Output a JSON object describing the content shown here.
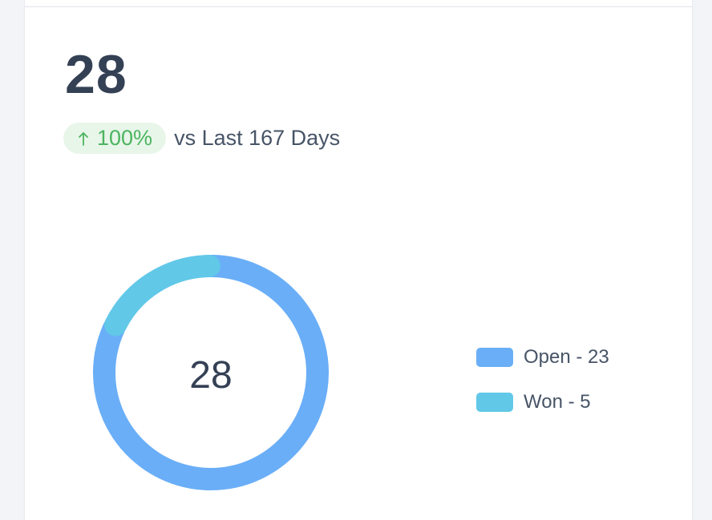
{
  "metric": {
    "value": "28",
    "trend_percent": "100%",
    "trend_direction": "up",
    "comparison_label": "vs Last 167 Days"
  },
  "chart_data": {
    "type": "pie",
    "variant": "donut",
    "center_label": "28",
    "categories": [
      "Open",
      "Won"
    ],
    "values": [
      23,
      5
    ],
    "legend": [
      "Open - 23",
      "Won - 5"
    ],
    "legend_placement": "right",
    "colors": [
      "#6aaef7",
      "#61c8e8"
    ]
  },
  "colors": {
    "accent_positive": "#4cb45f",
    "positive_bg": "#e8f6ea",
    "text_primary": "#344054"
  }
}
